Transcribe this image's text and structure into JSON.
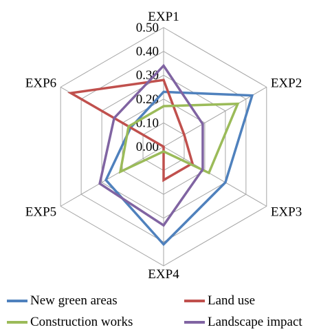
{
  "chart_data": {
    "type": "radar",
    "axes": [
      "EXP1",
      "EXP2",
      "EXP3",
      "EXP4",
      "EXP5",
      "EXP6"
    ],
    "ticks": [
      "0.00",
      "0.10",
      "0.20",
      "0.30",
      "0.40",
      "0.50"
    ],
    "rlim": [
      0,
      0.5
    ],
    "grid": true,
    "legend_position": "bottom",
    "series": [
      {
        "name": "New green areas",
        "color": "#4F81BD",
        "values": [
          0.23,
          0.43,
          0.3,
          0.41,
          0.28,
          0.16
        ]
      },
      {
        "name": "Land use",
        "color": "#C0504D",
        "values": [
          0.28,
          0.1,
          0.14,
          0.14,
          0.0,
          0.45
        ]
      },
      {
        "name": "Construction works",
        "color": "#9BBB59",
        "values": [
          0.17,
          0.36,
          0.22,
          0.02,
          0.21,
          0.17
        ]
      },
      {
        "name": "Landscape impact",
        "color": "#8064A2",
        "values": [
          0.34,
          0.19,
          0.19,
          0.33,
          0.31,
          0.24
        ]
      }
    ]
  }
}
